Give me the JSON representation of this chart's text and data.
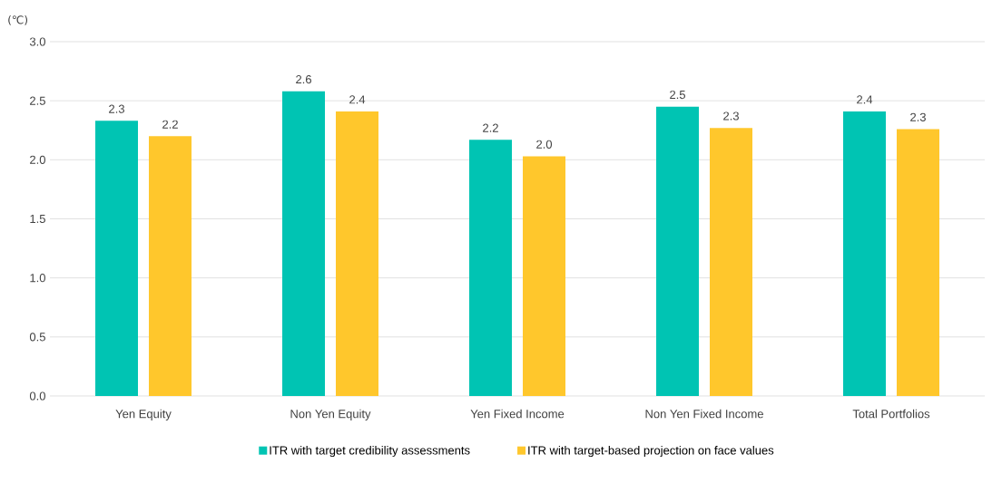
{
  "chart_data": {
    "type": "bar",
    "ylabel": "(℃)",
    "categories": [
      "Yen Equity",
      "Non Yen Equity",
      "Yen Fixed Income",
      "Non Yen Fixed Income",
      "Total Portfolios"
    ],
    "series": [
      {
        "name": "ITR with target credibility assessments",
        "color": "#00c4b3",
        "values": [
          2.33,
          2.58,
          2.17,
          2.45,
          2.41
        ],
        "value_labels": [
          "2.3",
          "2.6",
          "2.2",
          "2.5",
          "2.4"
        ]
      },
      {
        "name": "ITR with target-based projection on face values",
        "color": "#ffc72c",
        "values": [
          2.2,
          2.41,
          2.03,
          2.27,
          2.26
        ],
        "value_labels": [
          "2.2",
          "2.4",
          "2.0",
          "2.3",
          "2.3"
        ]
      }
    ],
    "ylim": [
      0,
      3
    ],
    "yticks": [
      {
        "value": 0,
        "label": "0.0"
      },
      {
        "value": 0.5,
        "label": "0.5"
      },
      {
        "value": 1,
        "label": "1.0"
      },
      {
        "value": 1.5,
        "label": "1.5"
      },
      {
        "value": 2,
        "label": "2.0"
      },
      {
        "value": 2.5,
        "label": "2.5"
      },
      {
        "value": 3,
        "label": "3.0"
      }
    ],
    "grid": "y",
    "legend": "bottom"
  }
}
